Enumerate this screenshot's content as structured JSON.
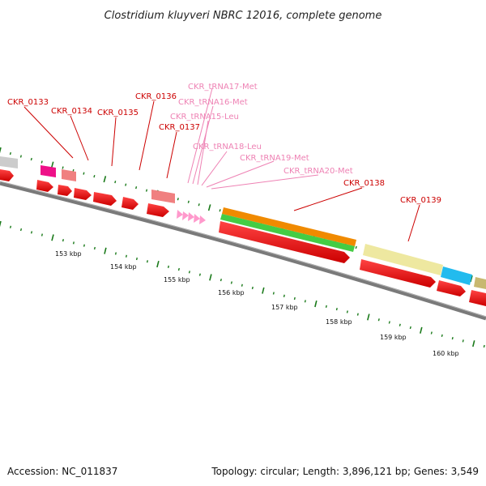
{
  "title": "Clostridium kluyveri NBRC 12016, complete genome",
  "footer": {
    "accession": "Accession: NC_011837",
    "topology": "Topology: circular; Length: 3,896,121 bp; Genes: 3,549"
  },
  "gene_labels": [
    "CKR_0133",
    "CKR_0134",
    "CKR_0135",
    "CKR_0136",
    "CKR_0137",
    "CKR_0138",
    "CKR_0139"
  ],
  "trna_labels": [
    "CKR_tRNA17-Met",
    "CKR_tRNA16-Met",
    "CKR_tRNA15-Leu",
    "CKR_tRNA18-Leu",
    "CKR_tRNA19-Met",
    "CKR_tRNA20-Met"
  ],
  "kbp_labels": [
    "153 kbp",
    "154 kbp",
    "155 kbp",
    "156 kbp",
    "157 kbp",
    "158 kbp",
    "159 kbp",
    "160 kbp"
  ],
  "colors": {
    "cds": "#ff0000",
    "trna": "#ff99cc",
    "gene_label": "#cc0000",
    "trna_label": "#ee82b4",
    "backbone": "#808080",
    "ticks": "#1a7a1a",
    "feature_orange": "#f08a00",
    "feature_green": "#44cc44",
    "feature_khaki": "#eee8a0",
    "feature_blue": "#22bbee",
    "feature_magenta": "#ee1188",
    "feature_salmon": "#f08080",
    "feature_grey": "#cccccc",
    "feature_olive": "#c8b870"
  }
}
